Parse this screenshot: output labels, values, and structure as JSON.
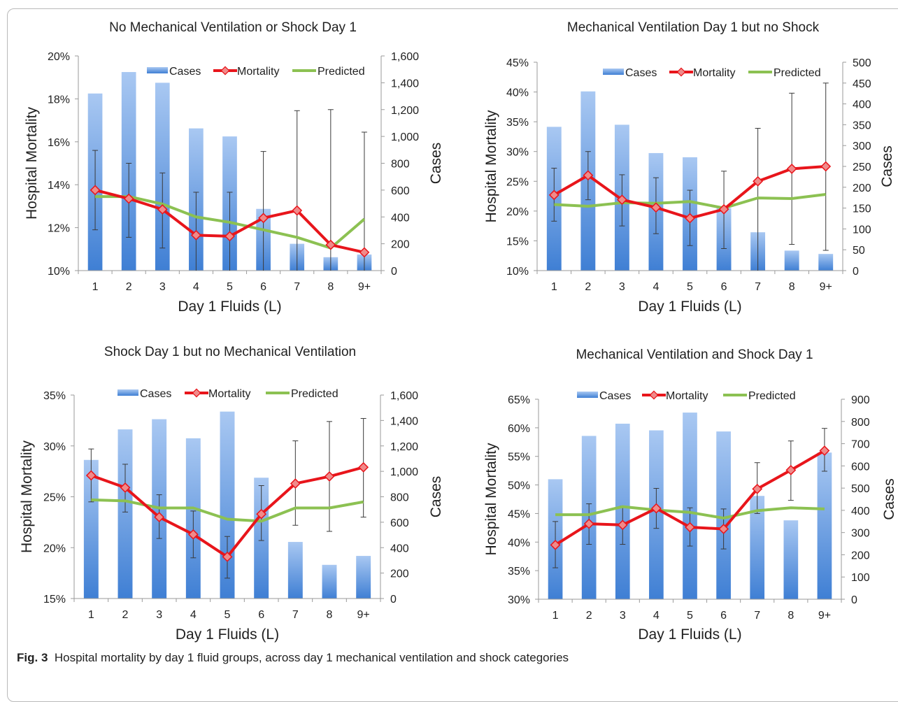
{
  "caption": {
    "label": "Fig. 3",
    "text": "Hospital mortality by day 1 fluid groups, across day 1 mechanical ventilation and shock categories"
  },
  "colors": {
    "cases_bar_top": "#a9c8f2",
    "cases_bar_bottom": "#3f7fd4",
    "mortality": "#e8151b",
    "mortality_marker": "#f08a8a",
    "predicted": "#8cc152",
    "error_bar": "#3a3a3a",
    "axis": "#9a9a9a"
  },
  "chart_data": [
    {
      "type": "bar",
      "title": "No Mechanical Ventilation or Shock Day 1",
      "xlabel": "Day 1 Fluids (L)",
      "ylabel": "Hospital Mortality",
      "y2label": "Cases",
      "categories": [
        "1",
        "2",
        "3",
        "4",
        "5",
        "6",
        "7",
        "8",
        "9+"
      ],
      "ylim": [
        10,
        20
      ],
      "y_ticks": [
        10,
        12,
        14,
        16,
        18,
        20
      ],
      "y_tick_labels": [
        "10%",
        "12%",
        "14%",
        "16%",
        "18%",
        "20%"
      ],
      "y2lim": [
        0,
        1600
      ],
      "y2_ticks": [
        0,
        200,
        400,
        600,
        800,
        1000,
        1200,
        1400,
        1600
      ],
      "y2_tick_labels": [
        "0",
        "200",
        "400",
        "600",
        "800",
        "1,000",
        "1,200",
        "1,400",
        "1,600"
      ],
      "legend_position": "top-right",
      "series": [
        {
          "name": "Cases",
          "kind": "bar",
          "axis": "y2",
          "values": [
            1320,
            1480,
            1400,
            1060,
            1000,
            460,
            200,
            100,
            120
          ]
        },
        {
          "name": "Mortality",
          "kind": "line",
          "axis": "y",
          "values": [
            13.75,
            13.35,
            12.85,
            11.65,
            11.6,
            12.45,
            12.8,
            11.2,
            10.85
          ],
          "error_low": [
            11.9,
            11.55,
            11.05,
            10.0,
            10.0,
            10.0,
            10.0,
            10.0,
            10.0
          ],
          "error_high": [
            15.6,
            15.0,
            14.55,
            13.65,
            13.65,
            15.55,
            17.45,
            17.5,
            16.45
          ]
        },
        {
          "name": "Predicted",
          "kind": "line",
          "axis": "y",
          "values": [
            13.45,
            13.45,
            13.1,
            12.5,
            12.25,
            11.9,
            11.55,
            11.05,
            12.4
          ]
        }
      ]
    },
    {
      "type": "bar",
      "title": "Mechanical Ventilation Day 1 but no Shock",
      "xlabel": "Day 1 Fluids (L)",
      "ylabel": "Hospital Mortality",
      "y2label": "Cases",
      "categories": [
        "1",
        "2",
        "3",
        "4",
        "5",
        "6",
        "7",
        "8",
        "9+"
      ],
      "ylim": [
        10,
        45
      ],
      "y_ticks": [
        10,
        15,
        20,
        25,
        30,
        35,
        40,
        45
      ],
      "y_tick_labels": [
        "10%",
        "15%",
        "20%",
        "25%",
        "30%",
        "35%",
        "40%",
        "45%"
      ],
      "y2lim": [
        0,
        500
      ],
      "y2_ticks": [
        0,
        50,
        100,
        150,
        200,
        250,
        300,
        350,
        400,
        450,
        500
      ],
      "y2_tick_labels": [
        "0",
        "50",
        "100",
        "150",
        "200",
        "250",
        "300",
        "350",
        "400",
        "450",
        "500"
      ],
      "legend_position": "top-right",
      "series": [
        {
          "name": "Cases",
          "kind": "bar",
          "axis": "y2",
          "values": [
            345,
            430,
            350,
            282,
            272,
            150,
            92,
            48,
            40
          ]
        },
        {
          "name": "Mortality",
          "kind": "line",
          "axis": "y",
          "values": [
            22.7,
            26.0,
            21.9,
            20.6,
            18.8,
            20.3,
            25.0,
            27.1,
            27.5
          ],
          "error_low": [
            18.3,
            21.9,
            17.5,
            16.2,
            14.2,
            13.7,
            10.0,
            14.4,
            13.4
          ],
          "error_high": [
            27.2,
            30.0,
            26.1,
            25.6,
            23.5,
            26.7,
            33.9,
            39.8,
            41.5
          ]
        },
        {
          "name": "Predicted",
          "kind": "line",
          "axis": "y",
          "values": [
            21.1,
            20.8,
            21.4,
            21.3,
            21.6,
            20.5,
            22.2,
            22.1,
            22.8
          ]
        }
      ]
    },
    {
      "type": "bar",
      "title": "Shock Day 1 but no Mechanical Ventilation",
      "xlabel": "Day 1 Fluids (L)",
      "ylabel": "Hospital Mortality",
      "y2label": "Cases",
      "categories": [
        "1",
        "2",
        "3",
        "4",
        "5",
        "6",
        "7",
        "8",
        "9+"
      ],
      "ylim": [
        15,
        35
      ],
      "y_ticks": [
        15,
        20,
        25,
        30,
        35
      ],
      "y_tick_labels": [
        "15%",
        "20%",
        "25%",
        "30%",
        "35%"
      ],
      "y2lim": [
        0,
        1600
      ],
      "y2_ticks": [
        0,
        200,
        400,
        600,
        800,
        1000,
        1200,
        1400,
        1600
      ],
      "y2_tick_labels": [
        "0",
        "200",
        "400",
        "600",
        "800",
        "1,000",
        "1,200",
        "1,400",
        "1,600"
      ],
      "legend_position": "top",
      "series": [
        {
          "name": "Cases",
          "kind": "bar",
          "axis": "y2",
          "values": [
            1090,
            1330,
            1410,
            1260,
            1470,
            950,
            445,
            265,
            335
          ]
        },
        {
          "name": "Mortality",
          "kind": "line",
          "axis": "y",
          "values": [
            27.1,
            25.9,
            23.0,
            21.3,
            19.1,
            23.3,
            26.3,
            27.0,
            27.9
          ],
          "error_low": [
            24.5,
            23.5,
            20.9,
            19.0,
            17.0,
            20.7,
            22.2,
            21.6,
            23.0
          ],
          "error_high": [
            29.7,
            28.2,
            25.2,
            23.6,
            21.1,
            26.1,
            30.5,
            32.4,
            32.7
          ]
        },
        {
          "name": "Predicted",
          "kind": "line",
          "axis": "y",
          "values": [
            24.7,
            24.6,
            23.9,
            23.9,
            22.8,
            22.6,
            23.9,
            23.9,
            24.5
          ]
        }
      ]
    },
    {
      "type": "bar",
      "title": "Mechanical Ventilation and Shock Day 1",
      "xlabel": "Day 1 Fluids (L)",
      "ylabel": "Hospital Mortality",
      "y2label": "Cases",
      "categories": [
        "1",
        "2",
        "3",
        "4",
        "5",
        "6",
        "7",
        "8",
        "9+"
      ],
      "ylim": [
        30,
        65
      ],
      "y_ticks": [
        30,
        35,
        40,
        45,
        50,
        55,
        60,
        65
      ],
      "y_tick_labels": [
        "30%",
        "35%",
        "40%",
        "45%",
        "50%",
        "55%",
        "60%",
        "65%"
      ],
      "y2lim": [
        0,
        900
      ],
      "y2_ticks": [
        0,
        100,
        200,
        300,
        400,
        500,
        600,
        700,
        800,
        900
      ],
      "y2_tick_labels": [
        "0",
        "100",
        "200",
        "300",
        "400",
        "500",
        "600",
        "700",
        "800",
        "900"
      ],
      "legend_position": "top",
      "series": [
        {
          "name": "Cases",
          "kind": "bar",
          "axis": "y2",
          "values": [
            540,
            735,
            790,
            760,
            840,
            755,
            465,
            355,
            660
          ]
        },
        {
          "name": "Mortality",
          "kind": "line",
          "axis": "y",
          "values": [
            39.5,
            43.2,
            43.0,
            45.9,
            42.6,
            42.3,
            49.3,
            52.6,
            56.0
          ],
          "error_low": [
            35.5,
            39.6,
            39.6,
            42.4,
            39.3,
            38.8,
            45.0,
            47.3,
            52.4
          ],
          "error_high": [
            43.6,
            46.7,
            46.3,
            49.4,
            46.0,
            45.8,
            53.9,
            57.7,
            59.9
          ]
        },
        {
          "name": "Predicted",
          "kind": "line",
          "axis": "y",
          "values": [
            44.8,
            44.8,
            46.2,
            45.6,
            45.2,
            44.2,
            45.5,
            46.0,
            45.8
          ]
        }
      ]
    }
  ]
}
